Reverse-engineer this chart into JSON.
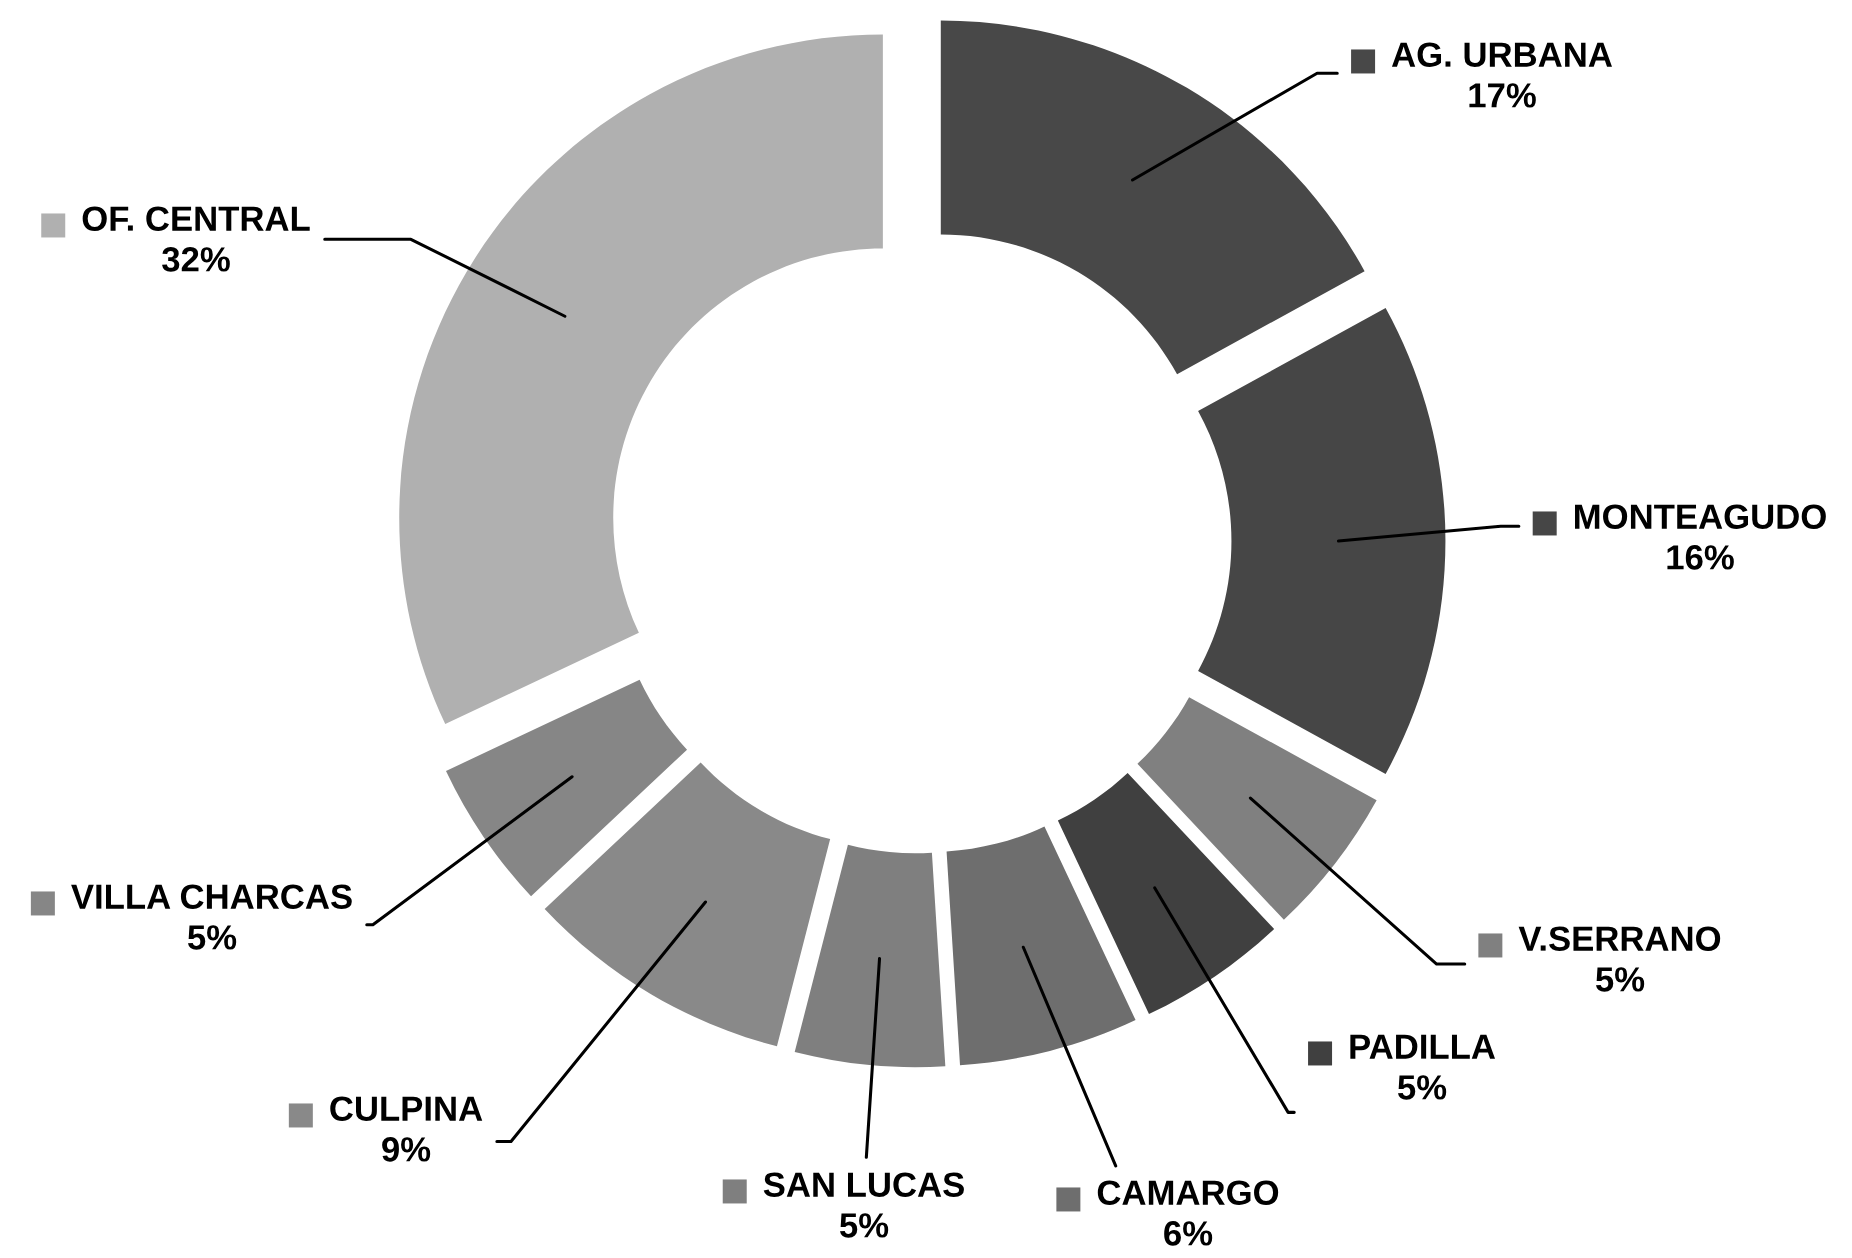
{
  "chart_data": {
    "type": "donut",
    "categories": [
      "AG. URBANA",
      "MONTEAGUDO",
      "V.SERRANO",
      "PADILLA",
      "CAMARGO",
      "SAN LUCAS",
      "CULPINA",
      "VILLA CHARCAS",
      "OF. CENTRAL"
    ],
    "values": [
      17,
      16,
      5,
      5,
      6,
      5,
      9,
      5,
      32
    ],
    "colors": [
      "#484848",
      "#464646",
      "#808080",
      "#404040",
      "#6e6e6e",
      "#7f7f7f",
      "#898989",
      "#868686",
      "#b0b0b0"
    ],
    "value_labels": [
      "17%",
      "16%",
      "5%",
      "5%",
      "6%",
      "5%",
      "9%",
      "5%",
      "32%"
    ],
    "legend": "center"
  }
}
